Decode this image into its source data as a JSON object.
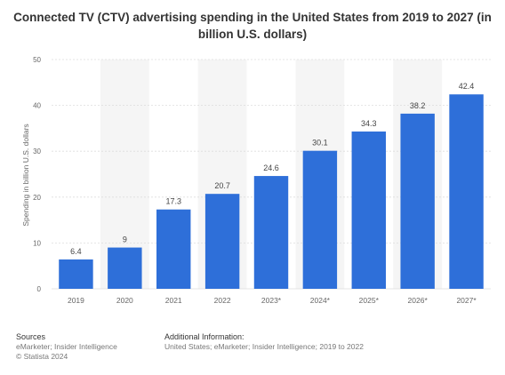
{
  "page": {
    "title": "Connected TV (CTV) advertising spending in the United States from 2019 to 2027 (in billion U.S. dollars)"
  },
  "footer": {
    "sources_label": "Sources",
    "sources_text": "eMarketer; Insider Intelligence",
    "copyright": "© Statista 2024",
    "addinfo_label": "Additional Information:",
    "addinfo_text": "United States; eMarketer; Insider Intelligence; 2019 to 2022"
  },
  "colors": {
    "bar": "#2e6fd9",
    "band": "#f5f5f5",
    "grid": "#dddddd",
    "axis_text": "#666666",
    "value_text": "#444444"
  },
  "chart_data": {
    "type": "bar",
    "title": "Connected TV (CTV) advertising spending in the United States from 2019 to 2027 (in billion U.S. dollars)",
    "xlabel": "",
    "ylabel": "Spending in billion U.S. dollars",
    "categories": [
      "2019",
      "2020",
      "2021",
      "2022",
      "2023*",
      "2024*",
      "2025*",
      "2026*",
      "2027*"
    ],
    "values": [
      6.4,
      9,
      17.3,
      20.7,
      24.6,
      30.1,
      34.3,
      38.2,
      42.4
    ],
    "value_labels": [
      "6.4",
      "9",
      "17.3",
      "20.7",
      "24.6",
      "30.1",
      "34.3",
      "38.2",
      "42.4"
    ],
    "ylim": [
      0,
      50
    ],
    "yticks": [
      0,
      10,
      20,
      30,
      40,
      50
    ],
    "grid": true,
    "legend": "none"
  }
}
